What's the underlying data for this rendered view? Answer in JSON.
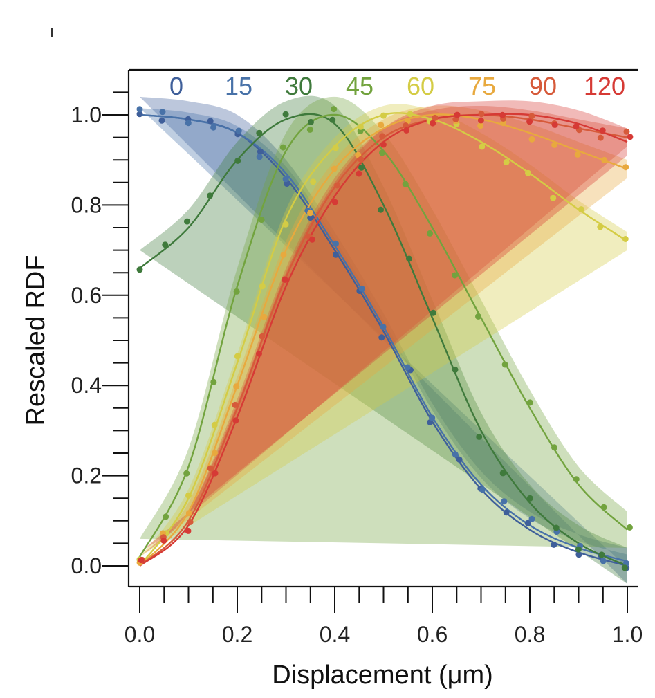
{
  "chart_data": {
    "type": "line",
    "title": "",
    "xlabel": "Displacement (μm)",
    "ylabel": "Rescaled RDF",
    "xlim": [
      0.0,
      1.0
    ],
    "ylim": [
      -0.05,
      1.1
    ],
    "x_ticks": [
      0.0,
      0.2,
      0.4,
      0.6,
      0.8,
      1.0
    ],
    "x_tick_labels": [
      "0.0",
      "0.2",
      "0.4",
      "0.6",
      "0.8",
      "1.0"
    ],
    "y_ticks": [
      0.0,
      0.2,
      0.4,
      0.6,
      0.8,
      1.0
    ],
    "y_tick_labels": [
      "0.0",
      "0.2",
      "0.4",
      "0.6",
      "0.8",
      "1.0"
    ],
    "legend_position": "top (inline labels across plot)",
    "x": [
      0.0,
      0.1,
      0.2,
      0.3,
      0.4,
      0.5,
      0.6,
      0.7,
      0.8,
      0.9,
      1.0
    ],
    "series": [
      {
        "name": "0",
        "color": "#3f5f9a",
        "band": 0.04,
        "values": [
          1.0,
          0.99,
          0.96,
          0.86,
          0.7,
          0.52,
          0.32,
          0.17,
          0.08,
          0.03,
          0.0
        ]
      },
      {
        "name": "15",
        "color": "#4872a8",
        "band": 0.015,
        "values": [
          1.0,
          0.99,
          0.96,
          0.87,
          0.71,
          0.53,
          0.33,
          0.18,
          0.09,
          0.04,
          0.01
        ]
      },
      {
        "name": "30",
        "color": "#3f7a3c",
        "band": 0.04,
        "values": [
          0.66,
          0.75,
          0.9,
          0.99,
          0.98,
          0.8,
          0.55,
          0.3,
          0.14,
          0.05,
          0.0
        ]
      },
      {
        "name": "45",
        "color": "#72a33e",
        "band": 0.04,
        "values": [
          0.02,
          0.22,
          0.62,
          0.92,
          1.0,
          0.92,
          0.75,
          0.55,
          0.35,
          0.18,
          0.08
        ]
      },
      {
        "name": "60",
        "color": "#d4cc45",
        "band": 0.02,
        "values": [
          0.0,
          0.15,
          0.45,
          0.77,
          0.93,
          1.0,
          0.99,
          0.94,
          0.87,
          0.79,
          0.72
        ]
      },
      {
        "name": "75",
        "color": "#e8a93e",
        "band": 0.02,
        "values": [
          0.0,
          0.12,
          0.4,
          0.7,
          0.88,
          0.97,
          1.0,
          0.99,
          0.96,
          0.92,
          0.88
        ]
      },
      {
        "name": "90",
        "color": "#d65a3a",
        "band": 0.02,
        "values": [
          0.0,
          0.1,
          0.35,
          0.64,
          0.84,
          0.95,
          0.99,
          1.0,
          0.99,
          0.97,
          0.95
        ]
      },
      {
        "name": "120",
        "color": "#d63a35",
        "band": 0.03,
        "values": [
          0.0,
          0.09,
          0.33,
          0.62,
          0.82,
          0.94,
          0.99,
          1.0,
          1.0,
          0.98,
          0.94
        ]
      }
    ]
  }
}
